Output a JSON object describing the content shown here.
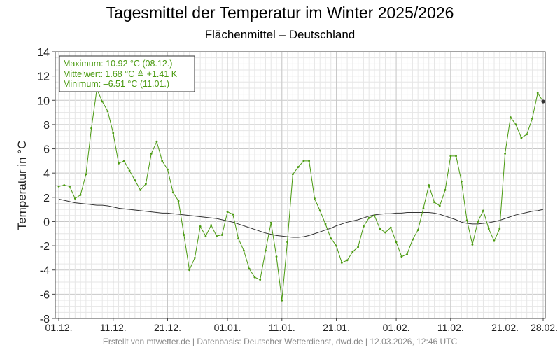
{
  "title": "Tagesmittel der Temperatur im Winter 2025/2026",
  "subtitle": "Flächenmittel – Deutschland",
  "footer": "Erstellt von mtwetter.de | Datenbasis: Deutscher Wetterdienst, dwd.de | 12.03.2026, 12:46 UTC",
  "colors": {
    "series": "#4a9a10",
    "normal": "#333333",
    "stats_text": "#4a9a10",
    "grid_major": "#c8c8c8",
    "grid_minor": "#e6e6e6"
  },
  "stats": {
    "line1": "Maximum: 10.92 °C  (08.12.)",
    "line2": "Mittelwert:   1.68 °C  ≙ +1.41 K",
    "line3": "Minimum:  –6.51 °C  (11.01.)"
  },
  "chart_data": {
    "type": "line",
    "title": "Tagesmittel der Temperatur im Winter 2025/2026",
    "subtitle": "Flächenmittel – Deutschland",
    "xlabel": "",
    "ylabel": "Temperatur in °C",
    "ylim": [
      -8,
      14
    ],
    "yticks": [
      -8,
      -6,
      -4,
      -2,
      0,
      2,
      4,
      6,
      8,
      10,
      12,
      14
    ],
    "x_day_range": [
      1,
      90
    ],
    "xticks": [
      {
        "day": 1,
        "label": "01.12."
      },
      {
        "day": 11,
        "label": "11.12."
      },
      {
        "day": 21,
        "label": "21.12."
      },
      {
        "day": 32,
        "label": "01.01."
      },
      {
        "day": 42,
        "label": "11.01."
      },
      {
        "day": 52,
        "label": "21.01."
      },
      {
        "day": 63,
        "label": "01.02."
      },
      {
        "day": 73,
        "label": "11.02."
      },
      {
        "day": 83,
        "label": "21.02."
      },
      {
        "day": 90,
        "label": "28.02."
      }
    ],
    "grid": true,
    "series": [
      {
        "values": [
          2.9,
          3.0,
          2.9,
          1.9,
          2.2,
          3.9,
          7.7,
          10.92,
          9.9,
          9.1,
          7.3,
          4.8,
          5.0,
          4.2,
          3.4,
          2.6,
          3.1,
          5.6,
          6.6,
          5.0,
          4.3,
          2.4,
          1.7,
          -1.1,
          -4.0,
          -3.0,
          -0.4,
          -1.2,
          -0.3,
          -1.2,
          -1.1,
          0.8,
          0.6,
          -1.4,
          -2.4,
          -3.9,
          -4.6,
          -4.8,
          -2.4,
          -0.1,
          -2.9,
          -6.51,
          -1.7,
          3.9,
          4.5,
          5.0,
          5.0,
          1.9,
          0.9,
          -0.2,
          -1.4,
          -2.0,
          -3.4,
          -3.2,
          -2.5,
          -2.1,
          -0.4,
          0.3,
          0.5,
          -0.6,
          -0.9,
          -0.5,
          -1.7,
          -2.9,
          -2.7,
          -1.5,
          -0.7,
          1.1,
          3.0,
          1.6,
          1.3,
          2.6,
          5.4,
          5.4,
          3.3,
          0.1,
          -1.9,
          0.0,
          0.9,
          -0.6,
          -1.6,
          -0.6,
          5.6,
          8.6,
          8.0,
          6.9,
          7.2,
          8.5,
          10.6,
          9.9
        ]
      },
      {
        "values": [
          1.85,
          1.75,
          1.65,
          1.55,
          1.5,
          1.45,
          1.4,
          1.35,
          1.35,
          1.3,
          1.2,
          1.1,
          1.05,
          1.0,
          0.95,
          0.9,
          0.85,
          0.8,
          0.75,
          0.7,
          0.7,
          0.65,
          0.6,
          0.55,
          0.5,
          0.45,
          0.4,
          0.35,
          0.3,
          0.25,
          0.15,
          0.05,
          -0.05,
          -0.2,
          -0.35,
          -0.5,
          -0.65,
          -0.8,
          -0.95,
          -1.05,
          -1.15,
          -1.2,
          -1.25,
          -1.3,
          -1.3,
          -1.25,
          -1.15,
          -1.0,
          -0.85,
          -0.7,
          -0.55,
          -0.35,
          -0.2,
          -0.05,
          0.05,
          0.15,
          0.3,
          0.45,
          0.55,
          0.6,
          0.65,
          0.65,
          0.7,
          0.7,
          0.75,
          0.75,
          0.75,
          0.75,
          0.75,
          0.7,
          0.6,
          0.45,
          0.3,
          0.15,
          -0.05,
          -0.15,
          -0.2,
          -0.2,
          -0.15,
          -0.1,
          0.0,
          0.1,
          0.25,
          0.4,
          0.55,
          0.65,
          0.75,
          0.85,
          0.9,
          1.0
        ]
      }
    ]
  }
}
